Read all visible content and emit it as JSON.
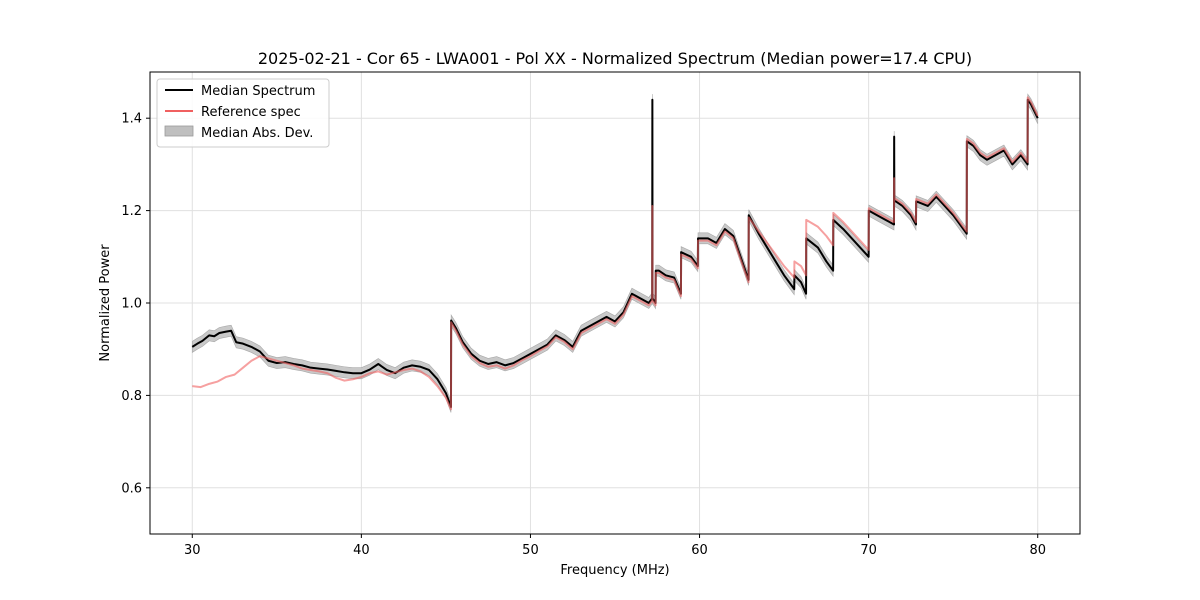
{
  "chart_data": {
    "type": "line",
    "title": "2025-02-21 - Cor 65 - LWA001 - Pol XX - Normalized Spectrum (Median power=17.4 CPU)",
    "xlabel": "Frequency (MHz)",
    "ylabel": "Normalized Power",
    "xlim": [
      27.5,
      82.5
    ],
    "ylim": [
      0.5,
      1.5
    ],
    "xticks": [
      30,
      40,
      50,
      60,
      70,
      80
    ],
    "yticks": [
      0.6,
      0.8,
      1.0,
      1.2,
      1.4
    ],
    "xtick_labels": [
      "30",
      "40",
      "50",
      "60",
      "70",
      "80"
    ],
    "ytick_labels": [
      "0.6",
      "0.8",
      "1.0",
      "1.2",
      "1.4"
    ],
    "grid": true,
    "legend_position": "upper-left",
    "legend": {
      "median": "Median Spectrum",
      "reference": "Reference spec",
      "mad": "Median Abs. Dev."
    },
    "colors": {
      "median": "#000000",
      "reference": "#f06060",
      "mad_fill": "#bfbfbf",
      "grid": "#e0e0e0"
    },
    "mad_halfwidth": 0.012,
    "series": [
      {
        "name": "Median Spectrum",
        "x": [
          30.0,
          30.3,
          30.6,
          31.0,
          31.3,
          31.6,
          32.0,
          32.3,
          32.6,
          33.0,
          33.5,
          34.0,
          34.5,
          35.0,
          35.5,
          36.0,
          36.5,
          37.0,
          37.5,
          38.0,
          38.5,
          39.0,
          39.5,
          40.0,
          40.5,
          41.0,
          41.5,
          42.0,
          42.5,
          43.0,
          43.5,
          44.0,
          44.5,
          45.0,
          45.3,
          45.31,
          45.6,
          46.0,
          46.5,
          47.0,
          47.5,
          48.0,
          48.5,
          49.0,
          49.5,
          50.0,
          50.5,
          51.0,
          51.5,
          52.0,
          52.5,
          53.0,
          53.5,
          54.0,
          54.5,
          55.0,
          55.5,
          56.0,
          56.5,
          57.0,
          57.2,
          57.21,
          57.22,
          57.4,
          57.41,
          57.6,
          58.0,
          58.5,
          58.9,
          58.91,
          59.5,
          59.9,
          59.91,
          60.5,
          61.0,
          61.5,
          62.0,
          62.9,
          62.91,
          63.5,
          64.0,
          64.5,
          65.0,
          65.6,
          65.61,
          66.0,
          66.3,
          66.31,
          67.0,
          67.5,
          67.9,
          67.91,
          68.5,
          69.0,
          69.5,
          70.0,
          70.01,
          70.5,
          71.0,
          71.5,
          71.51,
          71.52,
          71.6,
          72.0,
          72.5,
          72.8,
          72.81,
          73.5,
          74.0,
          74.5,
          75.0,
          75.8,
          75.81,
          76.2,
          76.6,
          77.0,
          77.5,
          78.0,
          78.5,
          79.0,
          79.4,
          79.41,
          79.6,
          80.0
        ],
        "values": [
          0.905,
          0.912,
          0.918,
          0.93,
          0.928,
          0.935,
          0.938,
          0.94,
          0.915,
          0.912,
          0.905,
          0.895,
          0.875,
          0.87,
          0.872,
          0.868,
          0.865,
          0.86,
          0.858,
          0.856,
          0.853,
          0.85,
          0.848,
          0.848,
          0.856,
          0.868,
          0.855,
          0.848,
          0.86,
          0.865,
          0.862,
          0.855,
          0.835,
          0.805,
          0.775,
          0.962,
          0.945,
          0.915,
          0.89,
          0.875,
          0.868,
          0.872,
          0.865,
          0.87,
          0.88,
          0.89,
          0.9,
          0.91,
          0.93,
          0.92,
          0.905,
          0.94,
          0.95,
          0.96,
          0.97,
          0.96,
          0.98,
          1.02,
          1.01,
          1.0,
          1.01,
          1.44,
          1.01,
          1.0,
          1.07,
          1.07,
          1.06,
          1.055,
          1.02,
          1.11,
          1.1,
          1.08,
          1.14,
          1.14,
          1.13,
          1.16,
          1.145,
          1.05,
          1.19,
          1.15,
          1.12,
          1.09,
          1.06,
          1.03,
          1.06,
          1.045,
          1.02,
          1.14,
          1.12,
          1.09,
          1.07,
          1.18,
          1.16,
          1.14,
          1.12,
          1.1,
          1.2,
          1.19,
          1.18,
          1.17,
          1.36,
          1.22,
          1.22,
          1.21,
          1.19,
          1.17,
          1.22,
          1.21,
          1.23,
          1.21,
          1.19,
          1.15,
          1.35,
          1.34,
          1.32,
          1.31,
          1.32,
          1.33,
          1.3,
          1.32,
          1.3,
          1.44,
          1.43,
          1.4
        ]
      },
      {
        "name": "Reference spec",
        "x": [
          30.0,
          30.5,
          31.0,
          31.5,
          32.0,
          32.5,
          33.0,
          33.5,
          34.0,
          34.5,
          35.0,
          35.5,
          36.0,
          36.5,
          37.0,
          37.5,
          38.0,
          38.5,
          39.0,
          39.5,
          40.0,
          40.5,
          41.0,
          41.5,
          42.0,
          42.5,
          43.0,
          43.5,
          44.0,
          44.5,
          45.0,
          45.3,
          45.31,
          45.6,
          46.0,
          46.5,
          47.0,
          47.5,
          48.0,
          48.5,
          49.0,
          49.5,
          50.0,
          50.5,
          51.0,
          51.5,
          52.0,
          52.5,
          53.0,
          53.5,
          54.0,
          54.5,
          55.0,
          55.5,
          56.0,
          56.5,
          57.0,
          57.2,
          57.21,
          57.22,
          57.4,
          57.41,
          57.6,
          58.0,
          58.5,
          58.9,
          58.91,
          59.5,
          59.9,
          59.91,
          60.5,
          61.0,
          61.5,
          62.0,
          62.9,
          62.91,
          63.5,
          64.0,
          64.5,
          65.0,
          65.6,
          65.61,
          66.0,
          66.3,
          66.31,
          67.0,
          67.5,
          67.9,
          67.91,
          68.5,
          69.0,
          69.5,
          70.0,
          70.01,
          70.5,
          71.0,
          71.5,
          71.51,
          71.52,
          71.6,
          72.0,
          72.5,
          72.8,
          72.81,
          73.5,
          74.0,
          74.5,
          75.0,
          75.8,
          75.81,
          76.2,
          76.6,
          77.0,
          77.5,
          78.0,
          78.5,
          79.0,
          79.4,
          79.41,
          79.6,
          80.0
        ],
        "values": [
          0.82,
          0.818,
          0.825,
          0.83,
          0.84,
          0.845,
          0.86,
          0.875,
          0.885,
          0.88,
          0.875,
          0.87,
          0.865,
          0.858,
          0.855,
          0.852,
          0.848,
          0.838,
          0.832,
          0.835,
          0.84,
          0.848,
          0.852,
          0.845,
          0.85,
          0.855,
          0.858,
          0.852,
          0.84,
          0.82,
          0.795,
          0.77,
          0.958,
          0.94,
          0.91,
          0.885,
          0.87,
          0.862,
          0.865,
          0.858,
          0.865,
          0.876,
          0.885,
          0.896,
          0.906,
          0.926,
          0.916,
          0.9,
          0.935,
          0.945,
          0.955,
          0.965,
          0.955,
          0.975,
          1.015,
          1.005,
          0.995,
          1.005,
          1.21,
          1.005,
          0.995,
          1.065,
          1.065,
          1.055,
          1.05,
          1.015,
          1.105,
          1.095,
          1.075,
          1.135,
          1.135,
          1.125,
          1.155,
          1.14,
          1.045,
          1.185,
          1.155,
          1.13,
          1.105,
          1.08,
          1.055,
          1.09,
          1.08,
          1.06,
          1.18,
          1.165,
          1.145,
          1.125,
          1.195,
          1.175,
          1.155,
          1.135,
          1.115,
          1.205,
          1.195,
          1.185,
          1.175,
          1.27,
          1.225,
          1.225,
          1.215,
          1.195,
          1.175,
          1.225,
          1.215,
          1.235,
          1.215,
          1.195,
          1.155,
          1.355,
          1.345,
          1.325,
          1.315,
          1.325,
          1.335,
          1.305,
          1.325,
          1.305,
          1.445,
          1.435,
          1.405
        ]
      }
    ]
  }
}
